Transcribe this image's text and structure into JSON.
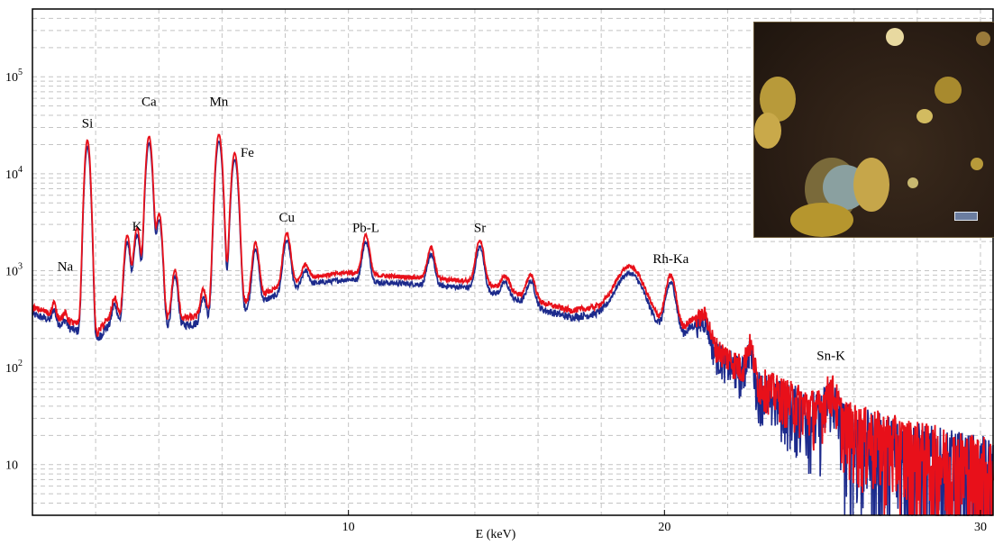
{
  "chart_data": {
    "type": "line",
    "title": "",
    "xlabel": "E (keV)",
    "ylabel": "",
    "xlim": [
      0,
      30.4
    ],
    "ylim": [
      3,
      500000
    ],
    "yscale": "log",
    "grid": true,
    "x_ticks": [
      10,
      20,
      30
    ],
    "x_tick_labels": [
      "10",
      "20",
      "30"
    ],
    "y_ticks": [
      10,
      100,
      1000,
      10000,
      100000
    ],
    "y_tick_labels": [
      {
        "base": "10",
        "exp": ""
      },
      {
        "base": "10",
        "exp": "2"
      },
      {
        "base": "10",
        "exp": "3"
      },
      {
        "base": "10",
        "exp": "4"
      },
      {
        "base": "10",
        "exp": "5"
      }
    ],
    "series": [
      {
        "color": "#e8101a",
        "role": "red spectrum"
      },
      {
        "color": "#1c2a8c",
        "role": "blue spectrum"
      }
    ],
    "background": [
      [
        0.0,
        420
      ],
      [
        0.5,
        370
      ],
      [
        1.0,
        320
      ],
      [
        1.3,
        290
      ],
      [
        1.8,
        250
      ],
      [
        2.0,
        210
      ],
      [
        2.3,
        300
      ],
      [
        3.0,
        320
      ],
      [
        4.0,
        300
      ],
      [
        5.0,
        330
      ],
      [
        6.0,
        360
      ],
      [
        7.0,
        520
      ],
      [
        8.0,
        720
      ],
      [
        9.0,
        880
      ],
      [
        10.0,
        960
      ],
      [
        11.0,
        890
      ],
      [
        12.0,
        860
      ],
      [
        13.0,
        820
      ],
      [
        14.0,
        780
      ],
      [
        15.0,
        640
      ],
      [
        16.0,
        480
      ],
      [
        17.0,
        390
      ],
      [
        18.0,
        420
      ],
      [
        19.0,
        380
      ],
      [
        20.0,
        280
      ],
      [
        20.5,
        240
      ],
      [
        21.0,
        210
      ],
      [
        22.0,
        130
      ],
      [
        23.0,
        70
      ],
      [
        24.0,
        47
      ],
      [
        25.0,
        34
      ],
      [
        26.0,
        24
      ],
      [
        27.0,
        18
      ],
      [
        28.0,
        14
      ],
      [
        29.0,
        11
      ],
      [
        30.0,
        9
      ],
      [
        30.4,
        8
      ]
    ],
    "peaks": [
      {
        "label": "Na",
        "x": 1.04,
        "height": 50,
        "sigma": 0.05,
        "label_y": 1000
      },
      {
        "label": "Si",
        "x": 1.74,
        "height": 22000,
        "sigma": 0.075,
        "label_y": 30000
      },
      {
        "label": "K",
        "x": 3.31,
        "height": 2400,
        "sigma": 0.09,
        "label_y": 2600
      },
      {
        "label": "Ca",
        "x": 3.69,
        "height": 24000,
        "sigma": 0.085,
        "label_y": 50000
      },
      {
        "label": "Mn",
        "x": 5.9,
        "height": 25000,
        "sigma": 0.09,
        "label_y": 50000
      },
      {
        "label": "Fe",
        "x": 6.4,
        "height": 16000,
        "sigma": 0.09,
        "label_y": 15000
      },
      {
        "label": "Cu",
        "x": 8.05,
        "height": 1700,
        "sigma": 0.1,
        "label_y": 3200
      },
      {
        "label": "Pb-L",
        "x": 10.55,
        "height": 1400,
        "sigma": 0.1,
        "label_y": 2500
      },
      {
        "label": "Sr",
        "x": 14.16,
        "height": 1300,
        "sigma": 0.11,
        "label_y": 2500
      },
      {
        "label": "Rh-Ka",
        "x": 20.2,
        "height": 620,
        "sigma": 0.14,
        "label_y": 1200
      },
      {
        "label": "Sn-K",
        "x": 25.27,
        "height": 28,
        "sigma": 0.16,
        "label_y": 120
      }
    ],
    "unlabeled_peaks": [
      {
        "x": 0.68,
        "height": 120,
        "sigma": 0.05
      },
      {
        "x": 2.6,
        "height": 220,
        "sigma": 0.08
      },
      {
        "x": 3.0,
        "height": 2000,
        "sigma": 0.08
      },
      {
        "x": 4.01,
        "height": 3600,
        "sigma": 0.08
      },
      {
        "x": 4.51,
        "height": 700,
        "sigma": 0.08
      },
      {
        "x": 5.41,
        "height": 300,
        "sigma": 0.08
      },
      {
        "x": 7.06,
        "height": 1400,
        "sigma": 0.09
      },
      {
        "x": 8.64,
        "height": 350,
        "sigma": 0.1
      },
      {
        "x": 12.61,
        "height": 900,
        "sigma": 0.1
      },
      {
        "x": 14.96,
        "height": 250,
        "sigma": 0.11
      },
      {
        "x": 15.77,
        "height": 400,
        "sigma": 0.12
      },
      {
        "x": 18.9,
        "height": 720,
        "sigma": 0.38
      },
      {
        "x": 21.0,
        "height": 110,
        "sigma": 0.25
      },
      {
        "x": 21.3,
        "height": 110,
        "sigma": 0.12
      },
      {
        "x": 22.7,
        "height": 90,
        "sigma": 0.1
      }
    ]
  },
  "inset": {
    "description_colors": {
      "background": "#2a1d14",
      "grain": "#b89a3a",
      "scalebar": "#6b7da0"
    }
  }
}
